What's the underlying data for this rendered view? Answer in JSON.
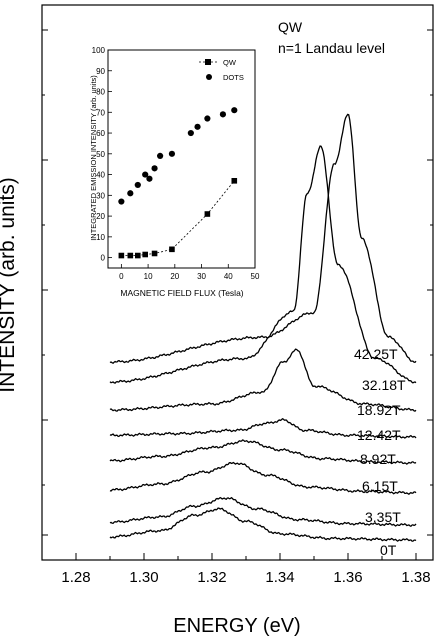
{
  "chart_data": [
    {
      "type": "line",
      "title": "",
      "xlabel": "ENERGY (eV)",
      "ylabel": "INTENSITY (arb. units)",
      "xlim": [
        1.27,
        1.385
      ],
      "x_ticks": [
        "1.28",
        "1.30",
        "1.32",
        "1.34",
        "1.36",
        "1.38"
      ],
      "y_ticks_labeled": false,
      "annotations": [
        "QW",
        "n=1 Landau level"
      ],
      "grid": false,
      "legend": "none",
      "series": [
        {
          "label": "0T",
          "x": [
            1.29,
            1.305,
            1.315,
            1.322,
            1.33,
            1.34,
            1.355,
            1.38
          ],
          "y": [
            0.1,
            0.3,
            0.8,
            1.0,
            0.6,
            0.2,
            0.05,
            0.0
          ]
        },
        {
          "label": "3.35T",
          "x": [
            1.29,
            1.305,
            1.315,
            1.324,
            1.333,
            1.345,
            1.36,
            1.38
          ],
          "y": [
            0.1,
            0.3,
            0.7,
            1.0,
            0.6,
            0.2,
            0.05,
            0.0
          ]
        },
        {
          "label": "6.15T",
          "x": [
            1.29,
            1.305,
            1.318,
            1.327,
            1.336,
            1.348,
            1.365,
            1.38
          ],
          "y": [
            0.1,
            0.3,
            0.7,
            1.0,
            0.6,
            0.2,
            0.05,
            0.0
          ]
        },
        {
          "label": "8.92T",
          "x": [
            1.29,
            1.305,
            1.32,
            1.33,
            1.34,
            1.352,
            1.368,
            1.38
          ],
          "y": [
            0.1,
            0.3,
            0.7,
            1.0,
            0.6,
            0.2,
            0.05,
            0.0
          ]
        },
        {
          "label": "12.42T",
          "x": [
            1.29,
            1.31,
            1.328,
            1.336,
            1.341,
            1.347,
            1.36,
            1.38
          ],
          "y": [
            0.1,
            0.2,
            0.4,
            0.8,
            1.0,
            0.4,
            0.1,
            0.0
          ]
        },
        {
          "label": "18.92T",
          "x": [
            1.29,
            1.32,
            1.335,
            1.341,
            1.345,
            1.35,
            1.365,
            1.38
          ],
          "y": [
            0.0,
            0.1,
            0.3,
            0.8,
            1.0,
            0.4,
            0.1,
            0.0
          ]
        },
        {
          "label": "32.18T",
          "x": [
            1.29,
            1.33,
            1.344,
            1.348,
            1.352,
            1.357,
            1.368,
            1.38
          ],
          "y": [
            0.0,
            0.1,
            0.3,
            0.8,
            1.0,
            0.5,
            0.1,
            0.0
          ]
        },
        {
          "label": "42.25T",
          "x": [
            1.29,
            1.335,
            1.35,
            1.356,
            1.36,
            1.364,
            1.372,
            1.38
          ],
          "y": [
            0.0,
            0.1,
            0.2,
            0.8,
            1.0,
            0.5,
            0.1,
            0.0
          ]
        }
      ]
    },
    {
      "type": "scatter",
      "title": "",
      "xlabel": "MAGNETIC FIELD FLUX (Tesla)",
      "ylabel": "INTEGRATED EMISSION INTENSITY (arb. units)",
      "xlim": [
        -5,
        50
      ],
      "ylim": [
        -5,
        100
      ],
      "x_ticks": [
        "0",
        "10",
        "20",
        "30",
        "40",
        "50"
      ],
      "y_ticks": [
        "0",
        "10",
        "20",
        "30",
        "40",
        "50",
        "60",
        "70",
        "80",
        "90",
        "100"
      ],
      "legend": "top-right",
      "series": [
        {
          "name": "QW",
          "marker": "square",
          "line": "dashed",
          "x": [
            0,
            3.35,
            6.15,
            8.92,
            12.42,
            18.92,
            32.18,
            42.25
          ],
          "y": [
            1,
            1,
            1,
            1.5,
            2,
            4,
            21,
            37
          ]
        },
        {
          "name": "DOTS",
          "marker": "circle",
          "line": "none",
          "x": [
            0,
            3.35,
            6.15,
            8.92,
            10.5,
            12.42,
            14.5,
            18.92,
            26,
            28.5,
            32.18,
            38,
            42.25
          ],
          "y": [
            27,
            31,
            35,
            40,
            38,
            43,
            49,
            50,
            60,
            63,
            67,
            69,
            71
          ]
        }
      ]
    }
  ]
}
